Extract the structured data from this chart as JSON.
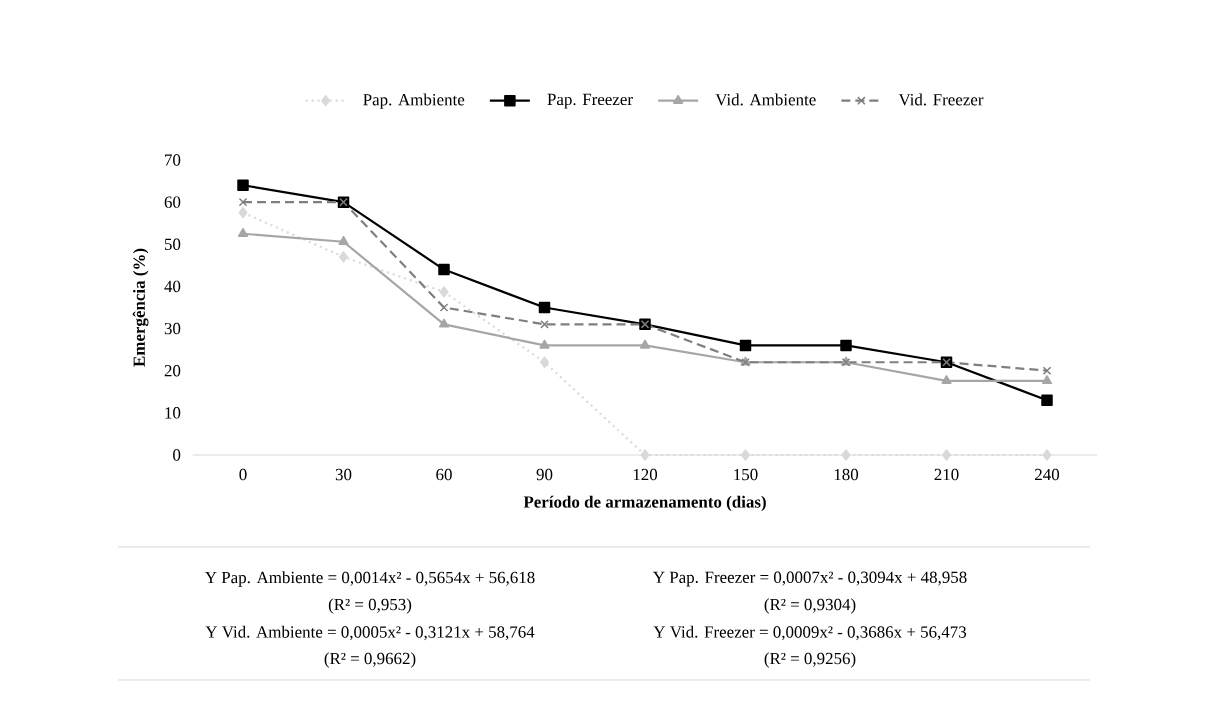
{
  "chart_data": {
    "type": "line",
    "xlabel": "Período de armazenamento (dias)",
    "ylabel": "Emergência (%)",
    "categories": [
      "0",
      "30",
      "60",
      "90",
      "120",
      "150",
      "180",
      "210",
      "240"
    ],
    "series": [
      {
        "name": "Pap. Ambiente",
        "color": "#d9d9d9",
        "marker": "diamond",
        "line_style": "dotted",
        "values": [
          57.5,
          47,
          38.7,
          22,
          0,
          0,
          0,
          0,
          0
        ]
      },
      {
        "name": "Pap. Freezer",
        "color": "#000000",
        "marker": "square",
        "line_style": "solid",
        "values": [
          64,
          60,
          44,
          35,
          31,
          26,
          26,
          22,
          13
        ]
      },
      {
        "name": "Vid. Ambiente",
        "color": "#a6a6a6",
        "marker": "triangle",
        "line_style": "solid",
        "values": [
          52.5,
          50.6,
          31,
          26,
          26,
          22,
          22,
          17.6,
          17.6
        ]
      },
      {
        "name": "Vid. Freezer",
        "color": "#7f7f7f",
        "marker": "cross",
        "line_style": "dashed",
        "values": [
          60,
          60,
          35,
          31,
          31,
          22,
          22,
          22,
          20
        ]
      }
    ],
    "ylim": [
      0,
      70
    ],
    "yticks": [
      0,
      10,
      20,
      30,
      40,
      50,
      60,
      70
    ],
    "grid": false,
    "legend": "top",
    "annotations": [
      "Y Pap. Ambiente = 0,0014x² - 0,5654x + 56,618",
      "Y Pap. Freezer = 0,0007x² - 0,3094x + 48,958",
      "(R² = 0,953)",
      "(R² = 0,9304)",
      "Y Vid. Ambiente = 0,0005x² - 0,3121x + 58,764",
      "Y Vid. Freezer = 0,0009x² - 0,3686x + 56,473",
      "(R² = 0,9662)",
      "(R² = 0,9256)"
    ]
  }
}
